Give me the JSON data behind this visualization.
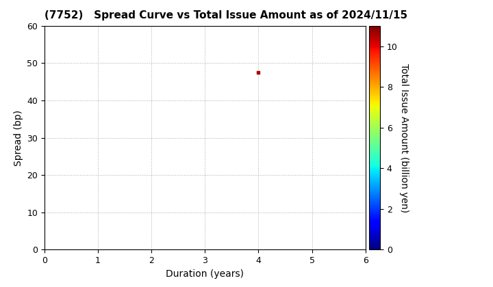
{
  "title": "(7752)   Spread Curve vs Total Issue Amount as of 2024/11/15",
  "xlabel": "Duration (years)",
  "ylabel": "Spread (bp)",
  "colorbar_label": "Total Issue Amount (billion yen)",
  "xlim": [
    0,
    6
  ],
  "ylim": [
    0,
    60
  ],
  "xticks": [
    0,
    1,
    2,
    3,
    4,
    5,
    6
  ],
  "yticks": [
    0,
    10,
    20,
    30,
    40,
    50,
    60
  ],
  "scatter_x": [
    4.0
  ],
  "scatter_y": [
    47.5
  ],
  "scatter_values": [
    10.5
  ],
  "colorbar_min": 0,
  "colorbar_max": 11,
  "colorbar_ticks": [
    0,
    2,
    4,
    6,
    8,
    10
  ],
  "cmap": "jet",
  "marker_size": 12,
  "marker_style": "s",
  "background_color": "#ffffff",
  "title_fontsize": 11,
  "axis_label_fontsize": 10,
  "colorbar_label_fontsize": 10,
  "tick_fontsize": 9
}
